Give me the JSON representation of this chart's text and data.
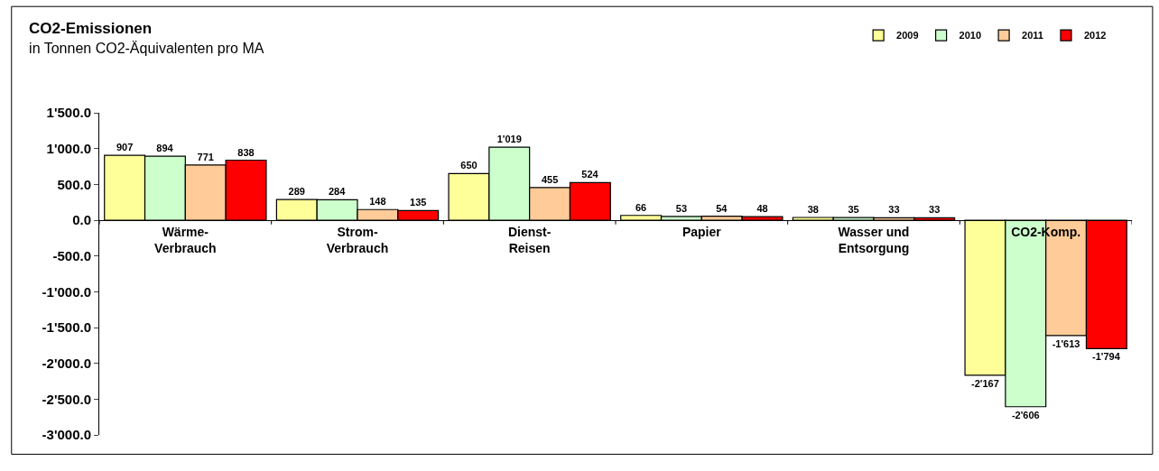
{
  "chart_data": {
    "type": "bar",
    "title": "CO2-Emissionen",
    "subtitle": "in Tonnen CO2-Äquivalenten pro MA",
    "categories": [
      "Wärme-\nVerbrauch",
      "Strom-\nVerbrauch",
      "Dienst-\nReisen",
      "Papier",
      "Wasser und\nEntsorgung",
      "CO2-Komp."
    ],
    "series": [
      {
        "name": "2009",
        "color": "#ffff99",
        "values": [
          907,
          289,
          650,
          66,
          38,
          -2167
        ],
        "value_labels": [
          "907",
          "289",
          "650",
          "66",
          "38",
          "-2'167"
        ]
      },
      {
        "name": "2010",
        "color": "#ccffcc",
        "values": [
          894,
          284,
          1019,
          53,
          35,
          -2606
        ],
        "value_labels": [
          "894",
          "284",
          "1'019",
          "53",
          "35",
          "-2'606"
        ]
      },
      {
        "name": "2011",
        "color": "#ffcc99",
        "values": [
          771,
          148,
          455,
          54,
          33,
          -1613
        ],
        "value_labels": [
          "771",
          "148",
          "455",
          "54",
          "33",
          "-1'613"
        ]
      },
      {
        "name": "2012",
        "color": "#ff0000",
        "values": [
          838,
          135,
          524,
          48,
          33,
          -1794
        ],
        "value_labels": [
          "838",
          "135",
          "524",
          "48",
          "33",
          "-1'794"
        ]
      }
    ],
    "ylim": [
      -3000,
      1500
    ],
    "yticks": [
      {
        "value": -3000,
        "label": "-3'000.0"
      },
      {
        "value": -2500,
        "label": "-2'500.0"
      },
      {
        "value": -2000,
        "label": "-2'000.0"
      },
      {
        "value": -1500,
        "label": "-1'500.0"
      },
      {
        "value": -1000,
        "label": "-1'000.0"
      },
      {
        "value": -500,
        "label": "-500.0"
      },
      {
        "value": 0,
        "label": "0.0"
      },
      {
        "value": 500,
        "label": "500.0"
      },
      {
        "value": 1000,
        "label": "1'000.0"
      },
      {
        "value": 1500,
        "label": "1'500.0"
      }
    ],
    "legend": "top right"
  }
}
